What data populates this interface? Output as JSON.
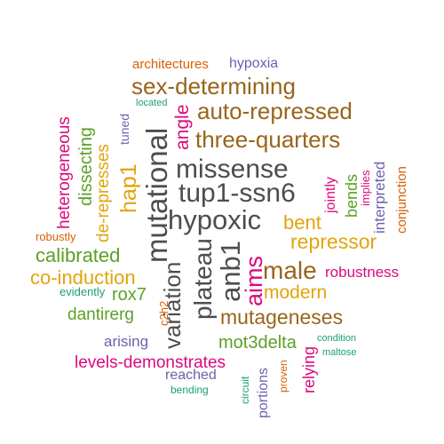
{
  "colors": {
    "background": "#ffffff",
    "dark_gray": "#4d4d4d",
    "brown": "#99641b",
    "gold": "#e2a40b",
    "green": "#5d9f25",
    "magenta": "#dc0a7c",
    "purple": "#6d61ac",
    "teal": "#1b9e77",
    "orange": "#d95f02"
  },
  "words": [
    {
      "id": "architectures",
      "text": "architectures",
      "color": "#d95f02",
      "weight": 3,
      "orientation": "horizontal"
    },
    {
      "id": "hypoxia",
      "text": "hypoxia",
      "color": "#6d61ac",
      "weight": 3,
      "orientation": "horizontal"
    },
    {
      "id": "sex-determining",
      "text": "sex-determining",
      "color": "#99641b",
      "weight": 7,
      "orientation": "horizontal"
    },
    {
      "id": "located",
      "text": "located",
      "color": "#1b9e77",
      "weight": 2,
      "orientation": "horizontal"
    },
    {
      "id": "auto-repressed",
      "text": "auto-repressed",
      "color": "#99641b",
      "weight": 7,
      "orientation": "horizontal"
    },
    {
      "id": "three-quarters",
      "text": "three-quarters",
      "color": "#99641b",
      "weight": 7,
      "orientation": "horizontal"
    },
    {
      "id": "missense",
      "text": "missense",
      "color": "#4d4d4d",
      "weight": 8,
      "orientation": "horizontal"
    },
    {
      "id": "tup1-ssn6",
      "text": "tup1-ssn6",
      "color": "#4d4d4d",
      "weight": 8,
      "orientation": "horizontal"
    },
    {
      "id": "hypoxic",
      "text": "hypoxic",
      "color": "#4d4d4d",
      "weight": 9,
      "orientation": "horizontal"
    },
    {
      "id": "bent",
      "text": "bent",
      "color": "#e2a40b",
      "weight": 6,
      "orientation": "horizontal"
    },
    {
      "id": "repressor",
      "text": "repressor",
      "color": "#e2a40b",
      "weight": 6,
      "orientation": "horizontal"
    },
    {
      "id": "calibrated",
      "text": "calibrated",
      "color": "#5d9f25",
      "weight": 6,
      "orientation": "horizontal"
    },
    {
      "id": "robustly",
      "text": "robustly",
      "color": "#d95f02",
      "weight": 3,
      "orientation": "horizontal"
    },
    {
      "id": "co-induction",
      "text": "co-induction",
      "color": "#e2a40b",
      "weight": 6,
      "orientation": "horizontal"
    },
    {
      "id": "male",
      "text": "male",
      "color": "#99641b",
      "weight": 8,
      "orientation": "horizontal"
    },
    {
      "id": "robustness",
      "text": "robustness",
      "color": "#dc0a7c",
      "weight": 4,
      "orientation": "horizontal"
    },
    {
      "id": "modern",
      "text": "modern",
      "color": "#e2a40b",
      "weight": 5,
      "orientation": "horizontal"
    },
    {
      "id": "evidently",
      "text": "evidently",
      "color": "#1b9e77",
      "weight": 2,
      "orientation": "horizontal"
    },
    {
      "id": "rox7",
      "text": "rox7",
      "color": "#5d9f25",
      "weight": 5,
      "orientation": "horizontal"
    },
    {
      "id": "dantirerg",
      "text": "dantirerg",
      "color": "#5d9f25",
      "weight": 5,
      "orientation": "horizontal"
    },
    {
      "id": "mutageneses",
      "text": "mutageneses",
      "color": "#99641b",
      "weight": 6,
      "orientation": "horizontal"
    },
    {
      "id": "arising",
      "text": "arising",
      "color": "#6d61ac",
      "weight": 4,
      "orientation": "horizontal"
    },
    {
      "id": "mot3delta",
      "text": "mot3delta",
      "color": "#5d9f25",
      "weight": 5,
      "orientation": "horizontal"
    },
    {
      "id": "condition",
      "text": "condition",
      "color": "#1b9e77",
      "weight": 2,
      "orientation": "horizontal"
    },
    {
      "id": "maltose",
      "text": "maltose",
      "color": "#1b9e77",
      "weight": 2,
      "orientation": "horizontal"
    },
    {
      "id": "levels-demonstrates",
      "text": "levels-demonstrates",
      "color": "#dc0a7c",
      "weight": 5,
      "orientation": "horizontal"
    },
    {
      "id": "reached",
      "text": "reached",
      "color": "#6d61ac",
      "weight": 4,
      "orientation": "horizontal"
    },
    {
      "id": "bending",
      "text": "bending",
      "color": "#1b9e77",
      "weight": 2,
      "orientation": "horizontal"
    },
    {
      "id": "heterogeneous",
      "text": "heterogeneous",
      "color": "#dc0a7c",
      "weight": 5,
      "orientation": "vertical"
    },
    {
      "id": "dissecting",
      "text": "dissecting",
      "color": "#5d9f25",
      "weight": 5,
      "orientation": "vertical"
    },
    {
      "id": "de-represses",
      "text": "de-represses",
      "color": "#e2a40b",
      "weight": 5,
      "orientation": "vertical"
    },
    {
      "id": "tuned",
      "text": "tuned",
      "color": "#6d61ac",
      "weight": 3,
      "orientation": "vertical"
    },
    {
      "id": "hap1",
      "text": "hap1",
      "color": "#e2a40b",
      "weight": 6,
      "orientation": "vertical"
    },
    {
      "id": "mutational",
      "text": "mutational",
      "color": "#4d4d4d",
      "weight": 9,
      "orientation": "vertical"
    },
    {
      "id": "angle",
      "text": "angle",
      "color": "#dc0a7c",
      "weight": 5,
      "orientation": "vertical"
    },
    {
      "id": "plateau",
      "text": "plateau",
      "color": "#4d4d4d",
      "weight": 8,
      "orientation": "vertical"
    },
    {
      "id": "variation",
      "text": "variation",
      "color": "#4d4d4d",
      "weight": 7,
      "orientation": "vertical"
    },
    {
      "id": "anb1",
      "text": "anb1",
      "color": "#4d4d4d",
      "weight": 8,
      "orientation": "vertical"
    },
    {
      "id": "aims",
      "text": "aims",
      "color": "#dc0a7c",
      "weight": 7,
      "orientation": "vertical"
    },
    {
      "id": "c2h2",
      "text": "c2h2",
      "color": "#d95f02",
      "weight": 2,
      "orientation": "vertical"
    },
    {
      "id": "jointly",
      "text": "jointly",
      "color": "#dc0a7c",
      "weight": 4,
      "orientation": "vertical"
    },
    {
      "id": "bends",
      "text": "bends",
      "color": "#5d9f25",
      "weight": 4,
      "orientation": "vertical"
    },
    {
      "id": "implies",
      "text": "implies",
      "color": "#dc0a7c",
      "weight": 2,
      "orientation": "vertical"
    },
    {
      "id": "interpreted",
      "text": "interpreted",
      "color": "#6d61ac",
      "weight": 4,
      "orientation": "vertical"
    },
    {
      "id": "conjunction",
      "text": "conjunction",
      "color": "#d95f02",
      "weight": 3,
      "orientation": "vertical"
    },
    {
      "id": "relying",
      "text": "relying",
      "color": "#dc0a7c",
      "weight": 5,
      "orientation": "vertical"
    },
    {
      "id": "proven",
      "text": "proven",
      "color": "#d95f02",
      "weight": 2,
      "orientation": "vertical"
    },
    {
      "id": "portions",
      "text": "portions",
      "color": "#6d61ac",
      "weight": 3,
      "orientation": "vertical"
    },
    {
      "id": "circuit",
      "text": "circuit",
      "color": "#1b9e77",
      "weight": 2,
      "orientation": "vertical"
    }
  ]
}
